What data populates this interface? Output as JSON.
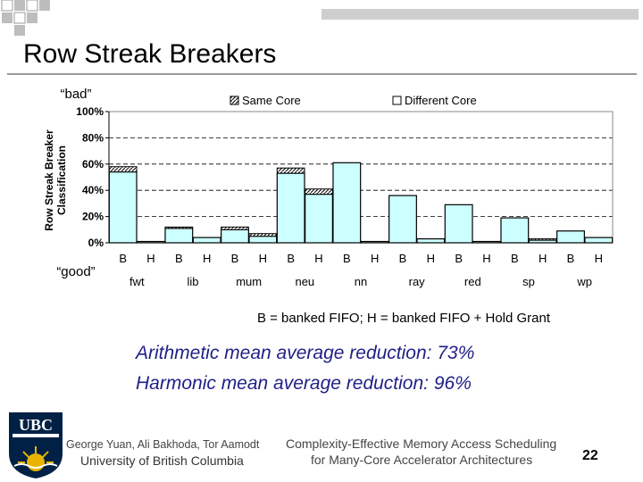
{
  "slide": {
    "title": "Row Streak Breakers",
    "caption": "B = banked FIFO; H = banked FIFO + Hold Grant",
    "arithmetic_line": "Arithmetic mean average reduction: 73%",
    "harmonic_line": "Harmonic mean average reduction: 96%",
    "authors": "George Yuan, Ali Bakhoda, Tor Aamodt",
    "university": "University of British Columbia",
    "talk_title_line1": "Complexity-Effective Memory Access Scheduling",
    "talk_title_line2": "for Many-Core Accelerator Architectures",
    "page_number": "22",
    "logo_text": "UBC"
  },
  "colors": {
    "bar_fill": "#ccffff",
    "bar_stroke": "#000000",
    "gridline": "#000000",
    "reduction_text": "#1f1f87",
    "ubc_blue": "#002145",
    "ubc_gold": "#e8b400"
  },
  "chart_data": {
    "type": "bar",
    "title": "",
    "ylabel_line1": "Row Streak Breaker",
    "ylabel_line2": "Classification",
    "annotation_top": "“bad”",
    "annotation_bottom": "“good”",
    "ylim": [
      0,
      100
    ],
    "yticks": [
      0,
      20,
      40,
      60,
      80,
      100
    ],
    "ytick_labels": [
      "0%",
      "20%",
      "40%",
      "60%",
      "80%",
      "100%"
    ],
    "grid": true,
    "legend": [
      {
        "name": "Same Core",
        "pattern": "hatched"
      },
      {
        "name": "Different Core",
        "pattern": "solid"
      }
    ],
    "groups": [
      "fwt",
      "lib",
      "mum",
      "neu",
      "nn",
      "ray",
      "red",
      "sp",
      "wp"
    ],
    "subcategories": [
      "B",
      "H"
    ],
    "series": [
      {
        "name": "Different Core",
        "values": [
          54,
          1,
          11,
          4,
          10,
          5,
          53,
          37,
          61,
          1,
          36,
          3,
          29,
          1,
          19,
          2,
          9,
          4
        ]
      },
      {
        "name": "Same Core",
        "values": [
          4,
          0,
          1,
          0,
          2,
          2,
          4,
          4,
          0,
          0,
          0,
          0,
          0,
          0,
          0,
          1,
          0,
          0
        ]
      }
    ]
  }
}
